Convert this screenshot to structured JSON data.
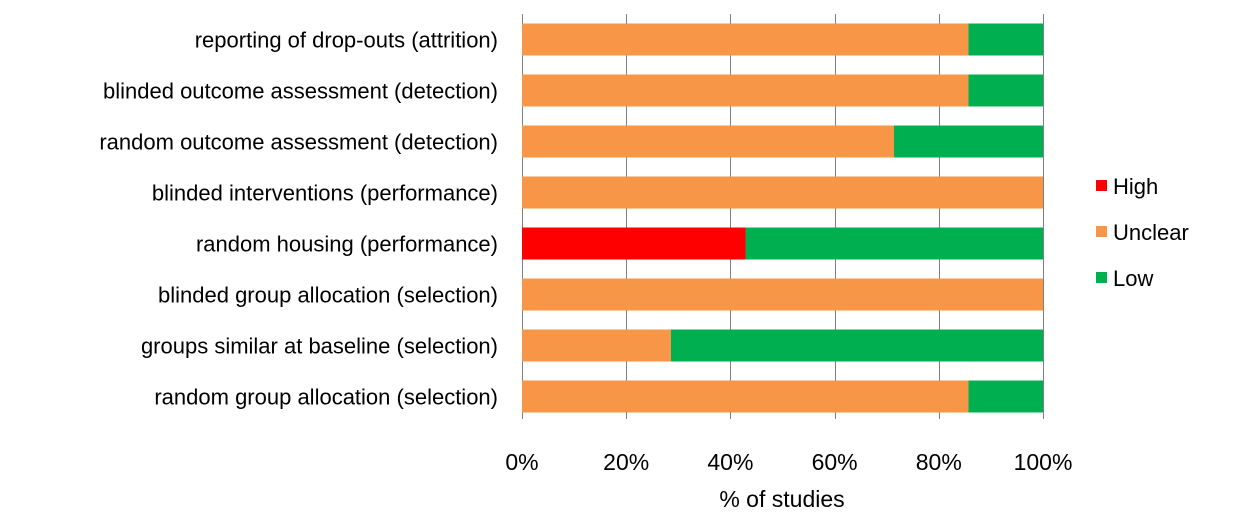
{
  "chart_data": {
    "type": "bar",
    "orientation": "horizontal",
    "stacked": true,
    "categories": [
      "reporting of drop-outs (attrition)",
      "blinded outcome assessment (detection)",
      "random outcome assessment (detection)",
      "blinded interventions (performance)",
      "random housing (performance)",
      "blinded group allocation (selection)",
      "groups similar at baseline (selection)",
      "random group allocation (selection)"
    ],
    "series": [
      {
        "name": "High",
        "color": "#ff0000",
        "values": [
          0,
          0,
          0,
          0,
          42.9,
          0,
          0,
          0
        ]
      },
      {
        "name": "Unclear",
        "color": "#f79646",
        "values": [
          85.7,
          85.7,
          71.4,
          100,
          0,
          100,
          28.6,
          85.7
        ]
      },
      {
        "name": "Low",
        "color": "#00b050",
        "values": [
          14.3,
          14.3,
          28.6,
          0,
          57.1,
          0,
          71.4,
          14.3
        ]
      }
    ],
    "xlabel": "% of studies",
    "ylabel": "",
    "title": "",
    "xlim": [
      0,
      100
    ],
    "x_ticks": [
      "0%",
      "20%",
      "40%",
      "60%",
      "80%",
      "100%"
    ],
    "grid": "vertical",
    "grid_color": "#808080",
    "legend_position": "right"
  }
}
